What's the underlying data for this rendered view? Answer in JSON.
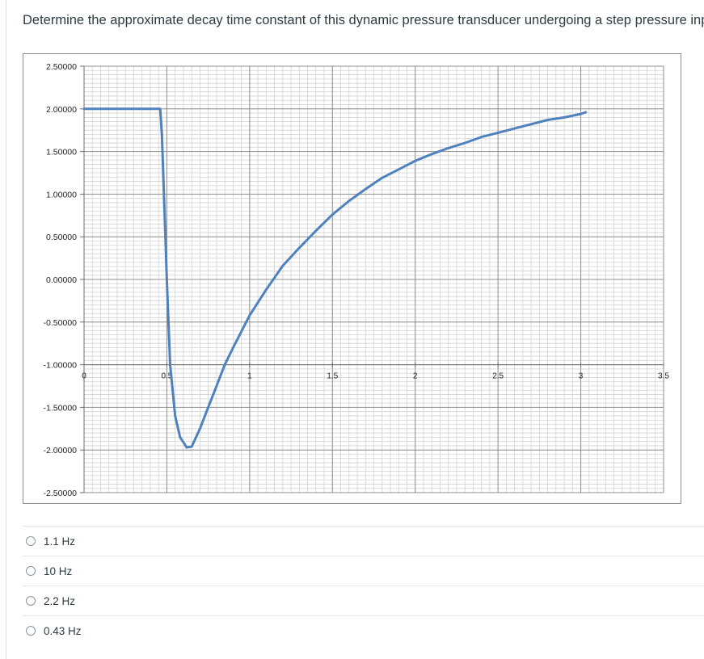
{
  "question": {
    "text": "Determine the approximate decay time constant of this dynamic pressure transducer undergoing a step pressure input."
  },
  "chart_data": {
    "type": "line",
    "title": "",
    "xlabel": "",
    "ylabel": "",
    "xlim": [
      0,
      3.5
    ],
    "ylim": [
      -2.5,
      2.5
    ],
    "x_ticks": [
      "0",
      "0.5",
      "1",
      "1.5",
      "2",
      "2.5",
      "3",
      "3.5"
    ],
    "y_ticks": [
      "2.50000",
      "2.00000",
      "1.50000",
      "1.00000",
      "0.50000",
      "0.00000",
      "-0.50000",
      "-1.00000",
      "-1.50000",
      "-2.00000",
      "-2.50000"
    ],
    "grid": true,
    "line_color": "#4f81bd",
    "series": [
      {
        "points": [
          [
            0.0,
            2.0
          ],
          [
            0.46,
            2.0
          ],
          [
            0.47,
            1.7
          ],
          [
            0.5,
            0.0
          ],
          [
            0.52,
            -1.0
          ],
          [
            0.55,
            -1.6
          ],
          [
            0.58,
            -1.85
          ],
          [
            0.62,
            -1.97
          ],
          [
            0.65,
            -1.96
          ],
          [
            0.7,
            -1.75
          ],
          [
            0.75,
            -1.5
          ],
          [
            0.8,
            -1.25
          ],
          [
            0.85,
            -1.0
          ],
          [
            0.9,
            -0.8
          ],
          [
            1.0,
            -0.42
          ],
          [
            1.1,
            -0.12
          ],
          [
            1.2,
            0.16
          ],
          [
            1.3,
            0.37
          ],
          [
            1.4,
            0.57
          ],
          [
            1.5,
            0.76
          ],
          [
            1.6,
            0.92
          ],
          [
            1.7,
            1.06
          ],
          [
            1.8,
            1.19
          ],
          [
            1.9,
            1.29
          ],
          [
            2.0,
            1.39
          ],
          [
            2.1,
            1.47
          ],
          [
            2.2,
            1.54
          ],
          [
            2.3,
            1.6
          ],
          [
            2.4,
            1.67
          ],
          [
            2.5,
            1.72
          ],
          [
            2.6,
            1.77
          ],
          [
            2.7,
            1.82
          ],
          [
            2.8,
            1.87
          ],
          [
            2.9,
            1.9
          ],
          [
            3.0,
            1.94
          ],
          [
            3.03,
            1.96
          ]
        ]
      }
    ]
  },
  "options": [
    {
      "label": "1.1 Hz"
    },
    {
      "label": "10 Hz"
    },
    {
      "label": "2.2 Hz"
    },
    {
      "label": "0.43 Hz"
    }
  ]
}
